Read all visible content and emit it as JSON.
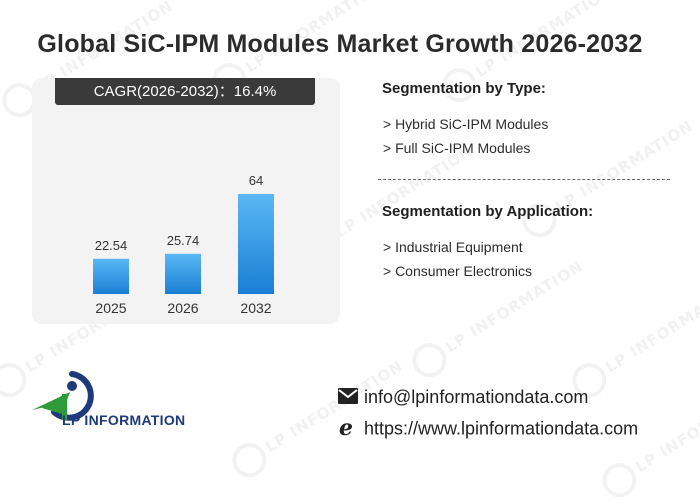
{
  "title": "Global SiC-IPM Modules Market Growth 2026-2032",
  "cagr_label": "CAGR(2026-2032)：16.4%",
  "chart_data": {
    "type": "bar",
    "title": "",
    "xlabel": "",
    "ylabel": "",
    "categories": [
      "2025",
      "2026",
      "2032"
    ],
    "values": [
      22.54,
      25.74,
      64
    ],
    "data_labels": [
      "22.54",
      "25.74",
      "64"
    ],
    "bar_color_top": "#5bb8f5",
    "bar_color_bottom": "#1a7fd4",
    "grid": false,
    "legend": "none"
  },
  "segmentation_type": {
    "heading": "Segmentation by Type:",
    "items": [
      "> Hybrid SiC-IPM Modules",
      "> Full SiC-IPM Modules"
    ]
  },
  "segmentation_application": {
    "heading": "Segmentation by Application:",
    "items": [
      "> Industrial Equipment",
      "> Consumer Electronics"
    ]
  },
  "logo": {
    "text": "LP INFORMATION",
    "icon": "lp-information-logo-icon"
  },
  "contact": {
    "email": "info@lpinformationdata.com",
    "email_icon": "envelope-icon",
    "website": "https://www.lpinformationdata.com",
    "website_icon": "edge-browser-icon"
  },
  "watermark_text": "LP INFORMATION",
  "colors": {
    "accent_blue": "#1a7fd4",
    "cagr_bg": "#3a3a3a",
    "logo_green": "#2e9a3a",
    "logo_navy": "#1f3a7a"
  }
}
